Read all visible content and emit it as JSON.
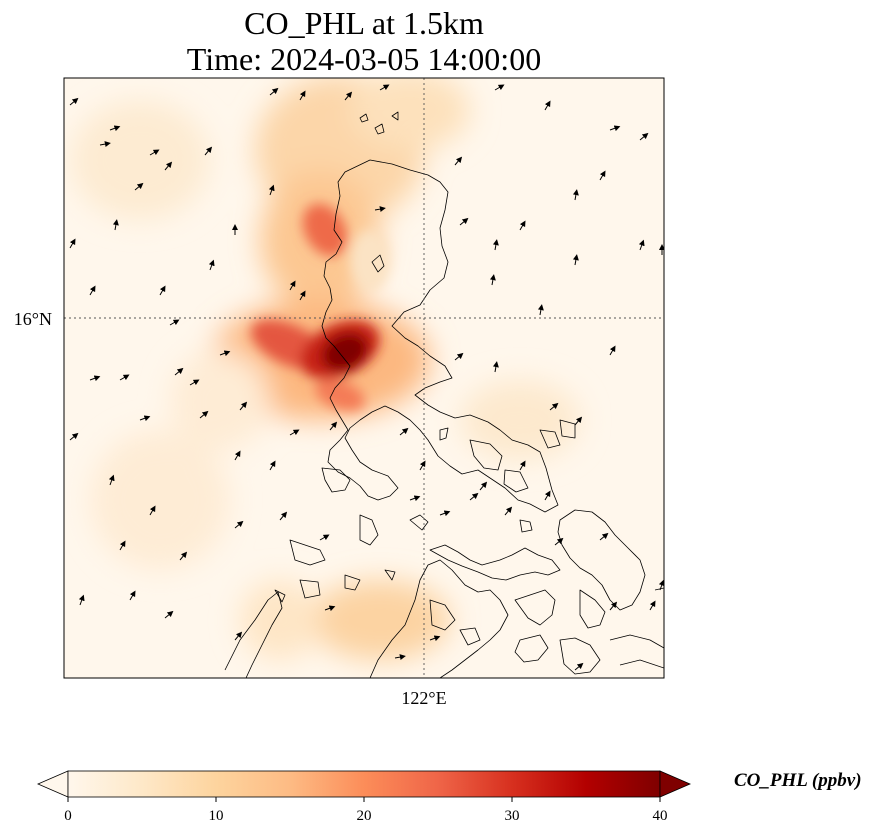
{
  "title": {
    "line1": "CO_PHL at 1.5km",
    "line2": "Time: 2024-03-05 14:00:00"
  },
  "axes": {
    "y_tick_label": "16°N",
    "x_tick_label": "122°E",
    "gridlines": "dotted, at 16°N and 122°E"
  },
  "colorbar": {
    "label": "CO_PHL (ppbv)",
    "ticks": [
      "0",
      "10",
      "20",
      "30",
      "40"
    ],
    "min": 0,
    "max": 40,
    "extend": "both",
    "colormap": "OrRd",
    "colors": [
      "#fff7ec",
      "#fee8c8",
      "#fdd49e",
      "#fdbb84",
      "#fc8d59",
      "#ef6548",
      "#d7301f",
      "#b30000",
      "#7f0000"
    ]
  },
  "map": {
    "coastline_color": "#000000",
    "background_color": "#fff7ec",
    "overlay": "wind vectors (black arrows)"
  },
  "chart_data": {
    "type": "heatmap",
    "title": "CO_PHL at 1.5km\nTime: 2024-03-05 14:00:00",
    "x_ticks": [
      "122°E"
    ],
    "y_ticks": [
      "16°N"
    ],
    "value_range": [
      0,
      40
    ],
    "colorbar_label": "CO_PHL (ppbv)",
    "plumes": [
      {
        "location": "west coast of central Luzon, west of the 16°N / 122°E gridline crossing",
        "peak_value": 40
      },
      {
        "location": "northwestern Luzon near 17°N",
        "peak_value": 25
      },
      {
        "location": "southwest of the 16°N line along the coast",
        "peak_value": 28
      },
      {
        "location": "Mindoro / Sibuyan Sea, south of the domain centre",
        "peak_value": 10
      }
    ]
  }
}
